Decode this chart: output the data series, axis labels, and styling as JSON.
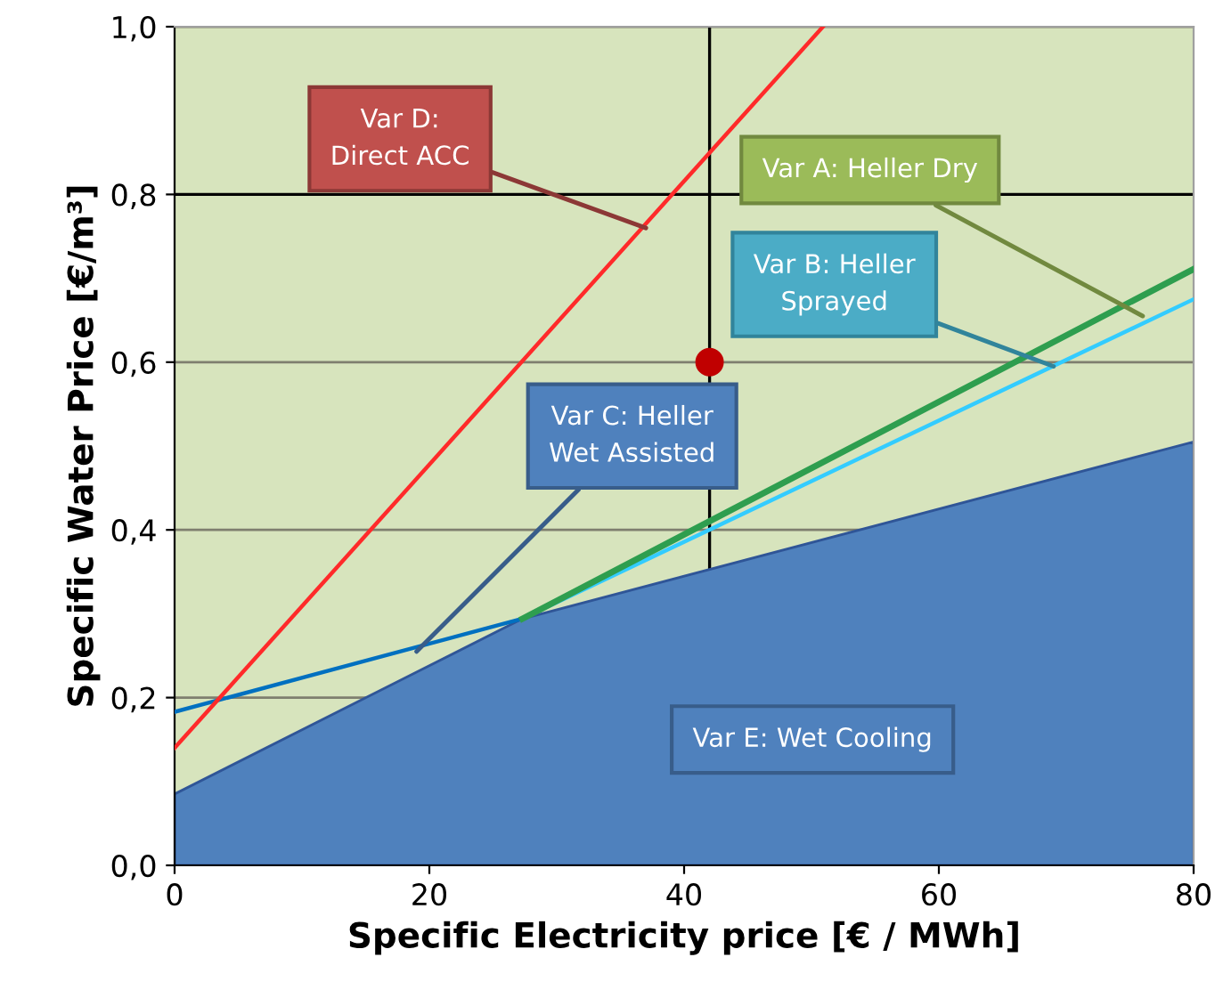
{
  "chart_data": {
    "type": "line",
    "xlabel": "Specific Electricity price [€ / MWh]",
    "ylabel": "Specific Water Price [€/m³]",
    "xlim": [
      0,
      80
    ],
    "ylim": [
      0,
      1.0
    ],
    "xticks": [
      0,
      20,
      40,
      60,
      80
    ],
    "yticks": [
      {
        "value": 0,
        "label": "0,0"
      },
      {
        "value": 0.2,
        "label": "0,2"
      },
      {
        "value": 0.4,
        "label": "0,4"
      },
      {
        "value": 0.6,
        "label": "0,6"
      },
      {
        "value": 0.8,
        "label": "0,8"
      },
      {
        "value": 1.0,
        "label": "1,0"
      }
    ],
    "grid": "y",
    "legend": false,
    "series": [
      {
        "type": "area",
        "color": "#4f81bd",
        "x": [
          0,
          27.3,
          80
        ],
        "values": [
          0.085,
          0.294,
          0.505
        ]
      },
      {
        "color": "#0070c0",
        "x": [
          0,
          27.3
        ],
        "values": [
          0.183,
          0.294
        ]
      },
      {
        "color": "#33ccff",
        "x": [
          27.3,
          80
        ],
        "values": [
          0.294,
          0.675
        ]
      },
      {
        "color": "#2e9e4f",
        "x": [
          27.3,
          80
        ],
        "values": [
          0.294,
          0.711
        ]
      },
      {
        "color": "#ff2a2a",
        "x": [
          0,
          50.9
        ],
        "values": [
          0.14,
          1.0
        ]
      },
      {
        "type": "scatter",
        "color": "#c00000",
        "x": [
          42
        ],
        "values": [
          0.6
        ]
      }
    ],
    "ref_lines": [
      {
        "axis": "x",
        "value": 42,
        "color": "#000000"
      },
      {
        "axis": "y",
        "value": 0.8,
        "color": "#000000"
      }
    ],
    "annotations": [
      {
        "text": "Var D:\nDirect ACC",
        "x": 37,
        "y": 0.76
      },
      {
        "text": "Var A: Heller Dry",
        "x": 76,
        "y": 0.655
      },
      {
        "text": "Var B: Heller\nSprayed",
        "x": 69,
        "y": 0.595
      },
      {
        "text": "Var C: Heller\nWet Assisted",
        "x": 19,
        "y": 0.255
      },
      "Var E: Wet Cooling"
    ]
  }
}
